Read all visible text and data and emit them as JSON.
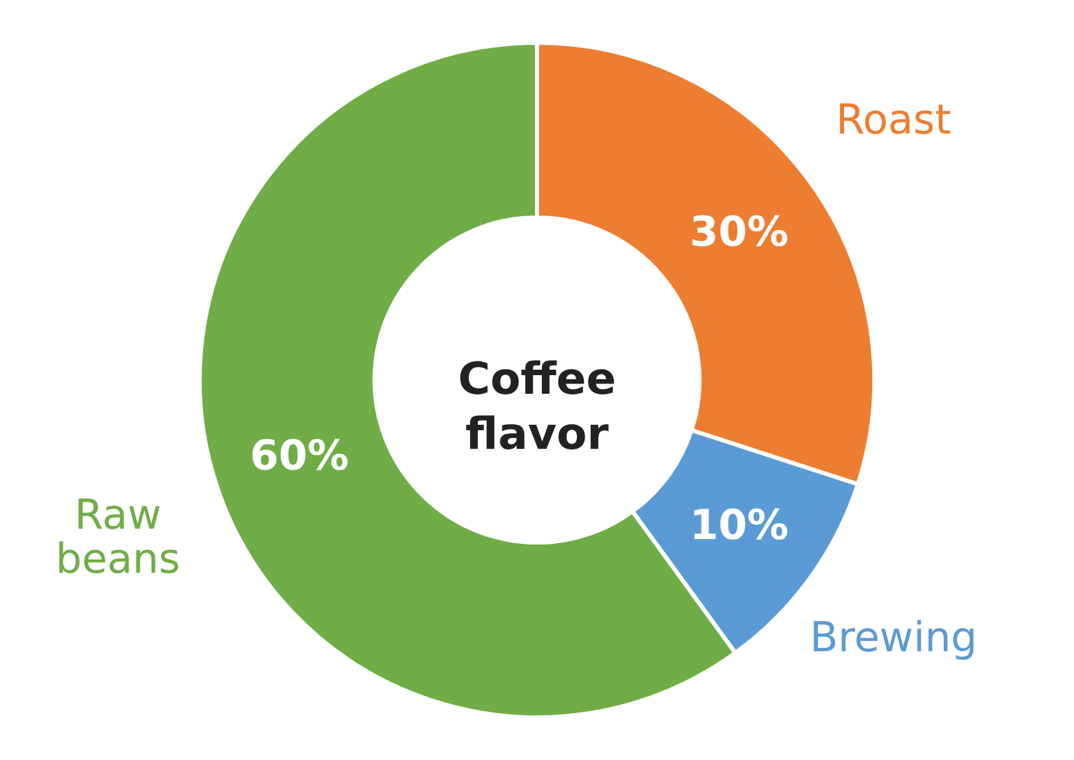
{
  "chart_data": {
    "type": "donut",
    "title": "Coffee flavor",
    "categories": [
      "Roast",
      "Brewing",
      "Raw beans"
    ],
    "values": [
      30,
      10,
      60
    ],
    "colors": [
      "#ed7d31",
      "#5b9bd5",
      "#70ad47"
    ],
    "value_labels": [
      "30%",
      "10%",
      "60%"
    ]
  }
}
